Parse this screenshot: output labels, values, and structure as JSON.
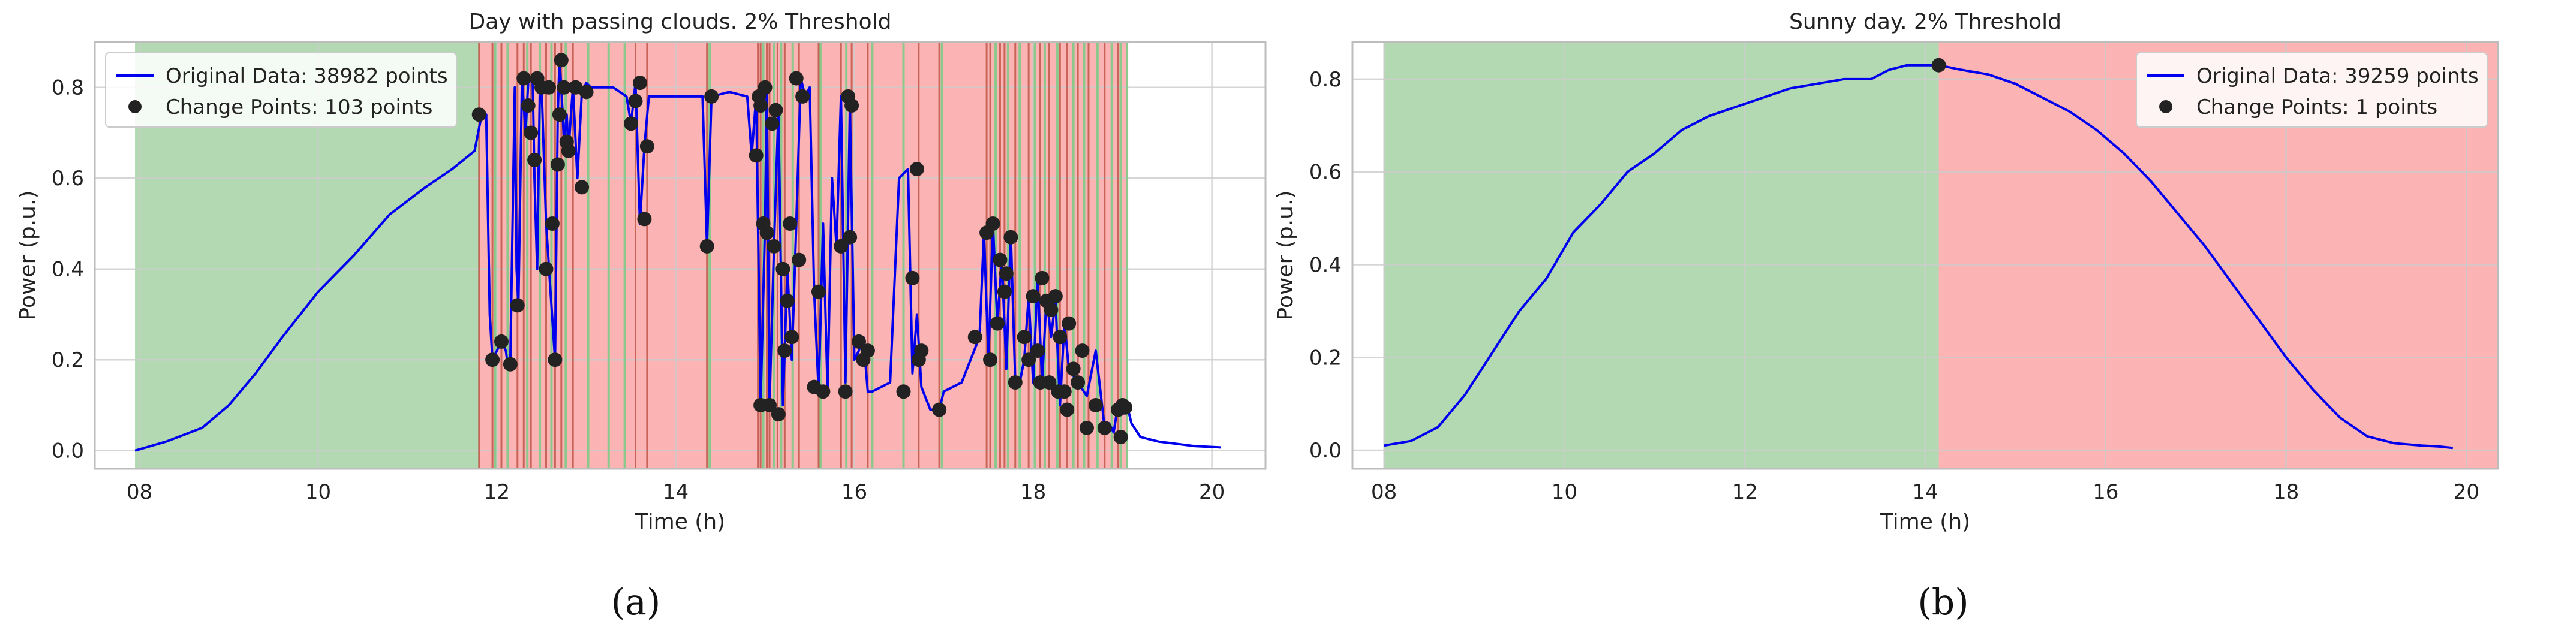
{
  "colors": {
    "line": "#0000ee",
    "points": "#222222",
    "green_region": "#b3d9b3",
    "red_region": "#fbb3b3",
    "green_boundary": "#8cc88c",
    "red_boundary": "#b84a3a",
    "grid": "#cccccc",
    "frame": "#bdbdbd"
  },
  "panels": [
    "(a)",
    "(b)"
  ],
  "chart_data": [
    {
      "type": "line",
      "title": "Day with passing clouds. 2% Threshold",
      "xlabel": "Time (h)",
      "ylabel": "Power (p.u.)",
      "xlim": [
        7.5,
        20.6
      ],
      "ylim": [
        -0.04,
        0.9
      ],
      "xticks": [
        8,
        10,
        12,
        14,
        16,
        18,
        20
      ],
      "xtick_labels": [
        "08",
        "10",
        "12",
        "14",
        "16",
        "18",
        "20"
      ],
      "yticks": [
        0.0,
        0.2,
        0.4,
        0.6,
        0.8
      ],
      "ytick_labels": [
        "0.0",
        "0.2",
        "0.4",
        "0.6",
        "0.8"
      ],
      "grid": true,
      "legend_position": "upper-left",
      "legend": [
        "Original Data: 38982 points",
        "Change Points: 103 points"
      ],
      "series": [
        {
          "name": "Original Data: 38982 points",
          "kind": "line",
          "x": [
            7.95,
            8.3,
            8.7,
            9.0,
            9.3,
            9.6,
            10.0,
            10.4,
            10.8,
            11.2,
            11.5,
            11.75,
            11.83,
            11.88,
            11.92,
            11.95,
            12.05,
            12.1,
            12.12,
            12.15,
            12.2,
            12.22,
            12.24,
            12.28,
            12.3,
            12.32,
            12.35,
            12.4,
            12.42,
            12.45,
            12.48,
            12.5,
            12.55,
            12.6,
            12.65,
            12.68,
            12.7,
            12.72,
            12.75,
            12.78,
            12.8,
            12.85,
            12.9,
            12.95,
            13.0,
            13.05,
            13.15,
            13.3,
            13.45,
            13.5,
            13.55,
            13.6,
            13.65,
            13.7,
            13.9,
            14.1,
            14.3,
            14.35,
            14.4,
            14.6,
            14.8,
            14.85,
            14.9,
            14.95,
            15.0,
            15.02,
            15.05,
            15.1,
            15.15,
            15.2,
            15.25,
            15.3,
            15.35,
            15.4,
            15.45,
            15.5,
            15.55,
            15.6,
            15.65,
            15.7,
            15.75,
            15.8,
            15.85,
            15.9,
            15.95,
            16.0,
            16.05,
            16.1,
            16.15,
            16.2,
            16.4,
            16.5,
            16.6,
            16.65,
            16.7,
            16.75,
            16.85,
            16.95,
            17.0,
            17.2,
            17.4,
            17.45,
            17.5,
            17.55,
            17.6,
            17.65,
            17.7,
            17.75,
            17.8,
            17.85,
            17.9,
            17.95,
            18.0,
            18.05,
            18.1,
            18.15,
            18.2,
            18.25,
            18.3,
            18.35,
            18.4,
            18.5,
            18.6,
            18.7,
            18.8,
            18.85,
            18.9,
            18.95,
            19.0,
            19.05,
            19.1,
            19.2,
            19.4,
            19.6,
            19.8,
            20.1
          ],
          "y": [
            0.0,
            0.02,
            0.05,
            0.1,
            0.17,
            0.25,
            0.35,
            0.43,
            0.52,
            0.58,
            0.62,
            0.66,
            0.74,
            0.74,
            0.3,
            0.2,
            0.24,
            0.22,
            0.19,
            0.2,
            0.8,
            0.4,
            0.32,
            0.82,
            0.76,
            0.7,
            0.81,
            0.82,
            0.6,
            0.4,
            0.8,
            0.8,
            0.5,
            0.35,
            0.2,
            0.74,
            0.86,
            0.8,
            0.68,
            0.74,
            0.66,
            0.8,
            0.6,
            0.79,
            0.81,
            0.8,
            0.8,
            0.8,
            0.78,
            0.72,
            0.81,
            0.5,
            0.67,
            0.78,
            0.78,
            0.78,
            0.78,
            0.45,
            0.78,
            0.79,
            0.78,
            0.65,
            0.78,
            0.1,
            0.5,
            0.8,
            0.1,
            0.45,
            0.75,
            0.1,
            0.4,
            0.2,
            0.5,
            0.82,
            0.78,
            0.8,
            0.35,
            0.13,
            0.5,
            0.13,
            0.6,
            0.45,
            0.78,
            0.15,
            0.76,
            0.2,
            0.22,
            0.25,
            0.13,
            0.13,
            0.15,
            0.6,
            0.62,
            0.17,
            0.3,
            0.14,
            0.09,
            0.09,
            0.13,
            0.15,
            0.25,
            0.48,
            0.2,
            0.5,
            0.28,
            0.42,
            0.18,
            0.48,
            0.15,
            0.15,
            0.2,
            0.34,
            0.15,
            0.38,
            0.15,
            0.34,
            0.25,
            0.33,
            0.1,
            0.28,
            0.18,
            0.15,
            0.12,
            0.22,
            0.05,
            0.06,
            0.04,
            0.1,
            0.08,
            0.1,
            0.06,
            0.03,
            0.02,
            0.015,
            0.01,
            0.007
          ]
        },
        {
          "name": "Change Points: 103 points",
          "kind": "scatter",
          "x": [
            11.8,
            11.95,
            12.05,
            12.15,
            12.23,
            12.3,
            12.35,
            12.38,
            12.45,
            12.5,
            12.55,
            12.58,
            12.62,
            12.65,
            12.7,
            12.72,
            12.75,
            12.78,
            12.8,
            12.88,
            12.95,
            13.0,
            13.5,
            13.6,
            13.65,
            13.68,
            14.35,
            14.4,
            14.9,
            14.93,
            14.95,
            14.98,
            15.0,
            15.02,
            15.05,
            15.1,
            15.12,
            15.15,
            15.2,
            15.22,
            15.28,
            15.3,
            15.35,
            15.38,
            15.42,
            15.6,
            15.65,
            15.85,
            15.9,
            15.93,
            15.97,
            16.1,
            16.15,
            16.55,
            16.7,
            16.72,
            16.75,
            16.95,
            17.35,
            17.48,
            17.52,
            17.55,
            17.6,
            17.63,
            17.68,
            17.75,
            17.8,
            17.9,
            17.95,
            18.0,
            18.05,
            18.08,
            18.1,
            18.15,
            18.18,
            18.25,
            18.3,
            18.35,
            18.4,
            18.45,
            18.5,
            18.55,
            18.6,
            18.7,
            18.8,
            18.95,
            18.98,
            19.0,
            19.03,
            14.95,
            15.08,
            15.25,
            15.55,
            15.95,
            16.05,
            12.68,
            13.55,
            12.42,
            18.2,
            18.28,
            18.38,
            17.7,
            16.65
          ],
          "y": [
            0.74,
            0.2,
            0.24,
            0.19,
            0.32,
            0.82,
            0.76,
            0.7,
            0.82,
            0.8,
            0.4,
            0.8,
            0.5,
            0.2,
            0.74,
            0.86,
            0.8,
            0.68,
            0.66,
            0.8,
            0.58,
            0.79,
            0.72,
            0.81,
            0.51,
            0.67,
            0.45,
            0.78,
            0.65,
            0.78,
            0.1,
            0.5,
            0.8,
            0.48,
            0.1,
            0.45,
            0.75,
            0.08,
            0.4,
            0.22,
            0.5,
            0.25,
            0.82,
            0.42,
            0.78,
            0.35,
            0.13,
            0.45,
            0.13,
            0.78,
            0.76,
            0.2,
            0.22,
            0.13,
            0.62,
            0.2,
            0.22,
            0.09,
            0.25,
            0.48,
            0.2,
            0.5,
            0.28,
            0.42,
            0.35,
            0.47,
            0.15,
            0.25,
            0.2,
            0.34,
            0.22,
            0.15,
            0.38,
            0.33,
            0.15,
            0.34,
            0.25,
            0.13,
            0.28,
            0.18,
            0.15,
            0.22,
            0.05,
            0.1,
            0.05,
            0.09,
            0.03,
            0.1,
            0.095,
            0.76,
            0.72,
            0.33,
            0.14,
            0.47,
            0.24,
            0.63,
            0.77,
            0.64,
            0.31,
            0.13,
            0.09,
            0.39,
            0.38
          ]
        }
      ],
      "regions": [
        {
          "from": 7.95,
          "to": 11.8,
          "color": "green"
        },
        {
          "from": 11.8,
          "to": 19.05,
          "color": "red"
        }
      ],
      "boundaries": {
        "green": [
          11.98,
          12.12,
          12.34,
          12.48,
          12.61,
          12.77,
          13.02,
          13.25,
          13.43,
          14.38,
          14.98,
          15.1,
          15.18,
          15.31,
          15.62,
          15.91,
          16.2,
          16.55,
          16.98,
          17.58,
          17.72,
          17.85,
          18.02,
          18.13,
          18.27,
          18.45,
          18.57,
          18.72,
          18.88,
          18.98,
          19.05
        ],
        "red": [
          11.8,
          11.95,
          12.05,
          12.23,
          12.3,
          12.38,
          12.55,
          12.65,
          12.72,
          12.85,
          13.55,
          13.68,
          14.35,
          14.92,
          14.95,
          15.02,
          15.05,
          15.14,
          15.22,
          15.38,
          15.6,
          15.85,
          15.97,
          16.15,
          16.72,
          16.95,
          17.48,
          17.52,
          17.63,
          17.68,
          17.8,
          17.95,
          18.08,
          18.18,
          18.3,
          18.38,
          18.5,
          18.62,
          18.8,
          18.95
        ]
      }
    },
    {
      "type": "line",
      "title": "Sunny day. 2% Threshold",
      "xlabel": "Time (h)",
      "ylabel": "Power (p.u.)",
      "xlim": [
        7.65,
        20.35
      ],
      "ylim": [
        -0.04,
        0.88
      ],
      "xticks": [
        8,
        10,
        12,
        14,
        16,
        18,
        20
      ],
      "xtick_labels": [
        "08",
        "10",
        "12",
        "14",
        "16",
        "18",
        "20"
      ],
      "yticks": [
        0.0,
        0.2,
        0.4,
        0.6,
        0.8
      ],
      "ytick_labels": [
        "0.0",
        "0.2",
        "0.4",
        "0.6",
        "0.8"
      ],
      "grid": true,
      "legend_position": "upper-right",
      "legend": [
        "Original Data: 39259 points",
        "Change Points: 1 points"
      ],
      "series": [
        {
          "name": "Original Data: 39259 points",
          "kind": "line",
          "x": [
            8.0,
            8.3,
            8.6,
            8.9,
            9.2,
            9.5,
            9.8,
            10.1,
            10.4,
            10.7,
            11.0,
            11.3,
            11.6,
            11.9,
            12.2,
            12.5,
            12.8,
            13.1,
            13.4,
            13.6,
            13.8,
            14.0,
            14.15,
            14.4,
            14.7,
            15.0,
            15.3,
            15.6,
            15.9,
            16.2,
            16.5,
            16.8,
            17.1,
            17.4,
            17.7,
            18.0,
            18.3,
            18.6,
            18.9,
            19.2,
            19.5,
            19.7,
            19.85
          ],
          "y": [
            0.01,
            0.02,
            0.05,
            0.12,
            0.21,
            0.3,
            0.37,
            0.47,
            0.53,
            0.6,
            0.64,
            0.69,
            0.72,
            0.74,
            0.76,
            0.78,
            0.79,
            0.8,
            0.8,
            0.82,
            0.83,
            0.83,
            0.83,
            0.82,
            0.81,
            0.79,
            0.76,
            0.73,
            0.69,
            0.64,
            0.58,
            0.51,
            0.44,
            0.36,
            0.28,
            0.2,
            0.13,
            0.07,
            0.03,
            0.015,
            0.01,
            0.008,
            0.005
          ]
        },
        {
          "name": "Change Points: 1 points",
          "kind": "scatter",
          "x": [
            14.15
          ],
          "y": [
            0.83
          ]
        }
      ],
      "regions": [
        {
          "from": 8.0,
          "to": 14.15,
          "color": "green"
        },
        {
          "from": 14.15,
          "to": 20.35,
          "color": "red"
        }
      ],
      "boundaries": {
        "green": [],
        "red": []
      }
    }
  ]
}
